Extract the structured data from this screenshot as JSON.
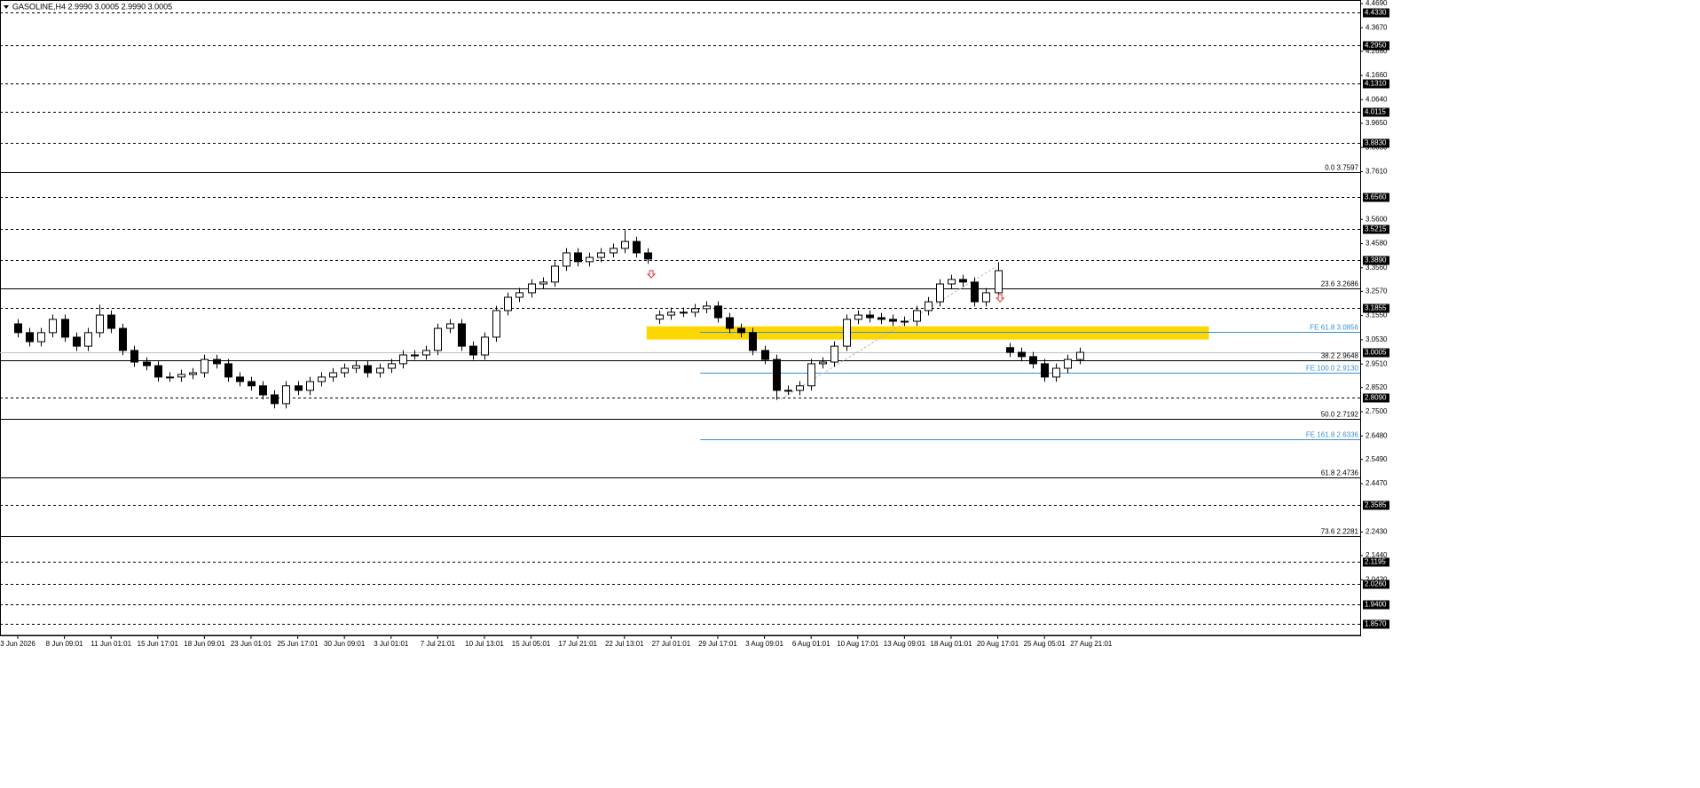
{
  "chart_data": {
    "type": "candlestick",
    "title": "GASOLINE,H4  2.9990 3.0005 2.9990 3.0005",
    "xlim": [
      -1.52,
      115.06
    ],
    "ylim": [
      1.808,
      4.484
    ],
    "x": [
      0,
      1,
      2,
      3,
      4,
      5,
      6,
      7,
      8,
      9,
      10,
      11,
      12,
      13,
      14,
      15,
      16,
      17,
      18,
      19,
      20,
      21,
      22,
      23,
      24,
      25,
      26,
      27,
      28,
      29,
      30,
      31,
      32,
      33,
      34,
      35,
      36,
      37,
      38,
      39,
      40,
      41,
      42,
      43,
      44,
      45,
      46,
      47,
      48,
      49,
      50,
      51,
      52,
      53,
      54,
      55,
      56,
      57,
      58,
      59,
      60,
      61,
      62,
      63,
      64,
      65,
      66,
      67,
      68,
      69,
      70,
      71,
      72,
      73,
      74,
      75,
      76,
      77,
      78,
      79,
      80,
      81,
      82,
      83,
      84,
      85,
      86,
      87,
      88,
      89,
      90,
      91
    ],
    "open": [
      3.12,
      3.083,
      3.045,
      3.083,
      3.139,
      3.064,
      3.026,
      3.083,
      3.157,
      3.101,
      3.008,
      2.959,
      2.944,
      2.896,
      2.896,
      2.907,
      2.914,
      2.97,
      2.952,
      2.896,
      2.877,
      2.859,
      2.821,
      2.784,
      2.859,
      2.84,
      2.877,
      2.896,
      2.914,
      2.933,
      2.944,
      2.914,
      2.933,
      2.952,
      2.989,
      2.989,
      3.008,
      3.101,
      3.12,
      3.026,
      2.989,
      3.064,
      3.176,
      3.232,
      3.251,
      3.288,
      3.296,
      3.363,
      3.419,
      3.382,
      3.4,
      3.419,
      3.438,
      3.467,
      3.419,
      3.14,
      3.157,
      3.169,
      3.169,
      3.184,
      3.195,
      3.146,
      3.101,
      3.083,
      3.008,
      2.97,
      2.84,
      2.84,
      2.859,
      2.952,
      2.959,
      3.026,
      3.139,
      3.157,
      3.146,
      3.139,
      3.131,
      3.131,
      3.176,
      3.213,
      3.288,
      3.307,
      3.296,
      3.213,
      3.251,
      3.02,
      3.0,
      2.982,
      2.952,
      2.896,
      2.933,
      2.97
    ],
    "high": [
      3.14,
      3.103,
      3.103,
      3.159,
      3.159,
      3.084,
      3.103,
      3.2,
      3.177,
      3.121,
      3.028,
      2.979,
      2.964,
      2.916,
      2.927,
      2.934,
      2.99,
      2.99,
      2.972,
      2.916,
      2.897,
      2.879,
      2.841,
      2.879,
      2.879,
      2.897,
      2.916,
      2.934,
      2.953,
      2.964,
      2.964,
      2.953,
      2.972,
      3.009,
      3.009,
      3.028,
      3.121,
      3.14,
      3.14,
      3.046,
      3.084,
      3.196,
      3.252,
      3.271,
      3.308,
      3.316,
      3.383,
      3.439,
      3.439,
      3.42,
      3.439,
      3.458,
      3.515,
      3.487,
      3.439,
      3.177,
      3.189,
      3.189,
      3.204,
      3.215,
      3.215,
      3.166,
      3.121,
      3.103,
      3.028,
      2.99,
      2.86,
      2.879,
      2.972,
      2.979,
      3.046,
      3.159,
      3.177,
      3.177,
      3.166,
      3.159,
      3.151,
      3.196,
      3.233,
      3.308,
      3.327,
      3.327,
      3.316,
      3.271,
      3.38,
      3.04,
      3.02,
      3.002,
      2.972,
      2.953,
      2.99,
      3.02
    ],
    "low": [
      3.063,
      3.025,
      3.025,
      3.063,
      3.044,
      3.006,
      3.006,
      3.063,
      3.081,
      2.988,
      2.939,
      2.924,
      2.876,
      2.876,
      2.876,
      2.887,
      2.894,
      2.932,
      2.876,
      2.857,
      2.839,
      2.801,
      2.764,
      2.764,
      2.82,
      2.82,
      2.857,
      2.876,
      2.894,
      2.913,
      2.894,
      2.894,
      2.913,
      2.932,
      2.969,
      2.969,
      2.988,
      3.081,
      3.006,
      2.969,
      2.969,
      3.044,
      3.156,
      3.212,
      3.231,
      3.268,
      3.276,
      3.343,
      3.362,
      3.362,
      3.38,
      3.399,
      3.418,
      3.399,
      3.373,
      3.12,
      3.137,
      3.149,
      3.149,
      3.164,
      3.126,
      3.081,
      3.063,
      2.988,
      2.95,
      2.8,
      2.82,
      2.82,
      2.839,
      2.932,
      2.939,
      3.006,
      3.119,
      3.126,
      3.119,
      3.111,
      3.111,
      3.111,
      3.156,
      3.193,
      3.268,
      3.276,
      3.193,
      3.193,
      3.231,
      2.98,
      2.962,
      2.932,
      2.876,
      2.876,
      2.913,
      2.95
    ],
    "close": [
      3.083,
      3.045,
      3.083,
      3.139,
      3.064,
      3.026,
      3.083,
      3.157,
      3.101,
      3.008,
      2.959,
      2.944,
      2.896,
      2.896,
      2.907,
      2.914,
      2.97,
      2.952,
      2.896,
      2.877,
      2.859,
      2.821,
      2.784,
      2.859,
      2.84,
      2.877,
      2.896,
      2.914,
      2.933,
      2.944,
      2.914,
      2.933,
      2.952,
      2.989,
      2.989,
      3.008,
      3.101,
      3.12,
      3.026,
      2.989,
      3.064,
      3.176,
      3.232,
      3.251,
      3.288,
      3.296,
      3.363,
      3.419,
      3.382,
      3.4,
      3.419,
      3.438,
      3.467,
      3.419,
      3.393,
      3.157,
      3.169,
      3.169,
      3.184,
      3.195,
      3.146,
      3.101,
      3.083,
      3.008,
      2.97,
      2.84,
      2.84,
      2.859,
      2.952,
      2.959,
      3.026,
      3.139,
      3.157,
      3.146,
      3.139,
      3.131,
      3.131,
      3.176,
      3.213,
      3.288,
      3.307,
      3.296,
      3.213,
      3.251,
      3.344,
      3.0,
      2.982,
      2.952,
      2.896,
      2.933,
      2.97,
      3.0
    ],
    "xticks": [
      {
        "value": 0,
        "label": "3 Jun 2026"
      },
      {
        "value": 4,
        "label": "8 Jun 09:01"
      },
      {
        "value": 8,
        "label": "11 Jun 01:01"
      },
      {
        "value": 12,
        "label": "15 Jun 17:01"
      },
      {
        "value": 16,
        "label": "18 Jun 09:01"
      },
      {
        "value": 20,
        "label": "23 Jun 01:01"
      },
      {
        "value": 24,
        "label": "25 Jun 17:01"
      },
      {
        "value": 28,
        "label": "30 Jun 09:01"
      },
      {
        "value": 32,
        "label": "3 Jul 01:01"
      },
      {
        "value": 36,
        "label": "7 Jul 21:01"
      },
      {
        "value": 40,
        "label": "10 Jul 13:01"
      },
      {
        "value": 44,
        "label": "15 Jul 05:01"
      },
      {
        "value": 48,
        "label": "17 Jul 21:01"
      },
      {
        "value": 52,
        "label": "22 Jul 13:01"
      },
      {
        "value": 56,
        "label": "27 Jul 01:01"
      },
      {
        "value": 60,
        "label": "29 Jul 17:01"
      },
      {
        "value": 64,
        "label": "3 Aug 09:01"
      },
      {
        "value": 68,
        "label": "6 Aug 01:01"
      },
      {
        "value": 72,
        "label": "10 Aug 17:01"
      },
      {
        "value": 76,
        "label": "13 Aug 09:01"
      },
      {
        "value": 80,
        "label": "18 Aug 01:01"
      },
      {
        "value": 84,
        "label": "20 Aug 17:01"
      },
      {
        "value": 88,
        "label": "25 Aug 05:01"
      },
      {
        "value": 92,
        "label": "27 Aug 21:01"
      }
    ],
    "yticks": [
      {
        "value": 4.469,
        "label": "4.4690"
      },
      {
        "value": 4.367,
        "label": "4.3670"
      },
      {
        "value": 4.268,
        "label": "4.2680"
      },
      {
        "value": 4.166,
        "label": "4.1660"
      },
      {
        "value": 4.064,
        "label": "4.0640"
      },
      {
        "value": 3.965,
        "label": "3.9650"
      },
      {
        "value": 3.863,
        "label": "3.8630"
      },
      {
        "value": 3.761,
        "label": "3.7610"
      },
      {
        "value": 3.56,
        "label": "3.5600"
      },
      {
        "value": 3.458,
        "label": "3.4580"
      },
      {
        "value": 3.356,
        "label": "3.3560"
      },
      {
        "value": 3.257,
        "label": "3.2570"
      },
      {
        "value": 3.155,
        "label": "3.1550"
      },
      {
        "value": 3.053,
        "label": "3.0530"
      },
      {
        "value": 2.951,
        "label": "2.9510"
      },
      {
        "value": 2.852,
        "label": "2.8520"
      },
      {
        "value": 2.75,
        "label": "2.7500"
      },
      {
        "value": 2.648,
        "label": "2.6480"
      },
      {
        "value": 2.549,
        "label": "2.5490"
      },
      {
        "value": 2.447,
        "label": "2.4470"
      },
      {
        "value": 2.243,
        "label": "2.2430"
      },
      {
        "value": 2.144,
        "label": "2.1440"
      },
      {
        "value": 2.042,
        "label": "2.0420"
      }
    ],
    "levels": [
      {
        "value": 4.433,
        "label": "4.4330"
      },
      {
        "value": 4.295,
        "label": "4.2950"
      },
      {
        "value": 4.131,
        "label": "4.1310"
      },
      {
        "value": 4.0115,
        "label": "4.0115"
      },
      {
        "value": 3.883,
        "label": "3.8830"
      },
      {
        "value": 3.656,
        "label": "3.6560"
      },
      {
        "value": 3.5215,
        "label": "3.5215"
      },
      {
        "value": 3.389,
        "label": "3.3890"
      },
      {
        "value": 3.1855,
        "label": "3.1855"
      },
      {
        "value": 2.809,
        "label": "2.8090"
      },
      {
        "value": 2.3585,
        "label": "2.3585"
      },
      {
        "value": 2.1195,
        "label": "2.1195"
      },
      {
        "value": 2.026,
        "label": "2.0260"
      },
      {
        "value": 1.94,
        "label": "1.9400"
      },
      {
        "value": 1.857,
        "label": "1.8570"
      }
    ],
    "current_price": {
      "value": 3.0005,
      "label": "3.0005",
      "color": "#c0c0c0"
    },
    "fib_levels": [
      {
        "value": 3.7597,
        "label": "0.0 3.7597"
      },
      {
        "value": 3.2686,
        "label": "23.6 3.2686"
      },
      {
        "value": 2.9648,
        "label": "38.2 2.9648"
      },
      {
        "value": 2.7192,
        "label": "50.0 2.7192"
      },
      {
        "value": 2.4736,
        "label": "61.8 2.4736"
      },
      {
        "value": 2.2281,
        "label": "73.6 2.2281"
      }
    ],
    "fe_start": 58.5,
    "fe_color": "#3a8fd8",
    "fe_levels": [
      {
        "value": 3.0856,
        "label": "FE 61.8 3.0856"
      },
      {
        "value": 2.913,
        "label": "FE 100.0 2.9130"
      },
      {
        "value": 2.6336,
        "label": "FE 161.8 2.6336"
      }
    ],
    "zone": {
      "x0": 53.9,
      "x1": 102.1,
      "top": 3.1095,
      "bottom": 3.054,
      "color": "#ffd700"
    },
    "trendline": {
      "x": [
        65.4,
        83.8
      ],
      "y": [
        2.802,
        3.359
      ]
    },
    "arrows": [
      {
        "x": 54.3,
        "y": 3.329
      },
      {
        "x": 84.2,
        "y": 3.228
      }
    ],
    "arrow_color": "#e03030"
  }
}
